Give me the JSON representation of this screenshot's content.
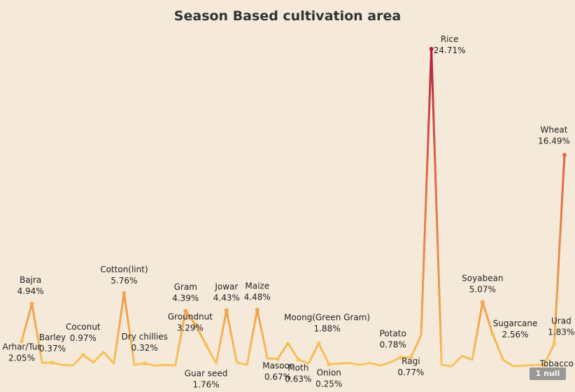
{
  "chart_data": {
    "type": "line",
    "title": "Season Based cultivation area",
    "xlabel": "",
    "ylabel": "",
    "ylim": [
      0,
      26
    ],
    "grid": false,
    "legend": "none",
    "color_scale": [
      "#f6c55e",
      "#f2a54e",
      "#e06a48",
      "#b11f3b"
    ],
    "points": [
      {
        "crop": "Arhar/Tur",
        "value": 2.05,
        "show_label": true,
        "label": "2.05%"
      },
      {
        "crop": "Bajra",
        "value": 4.94,
        "show_label": true,
        "label": "4.94%"
      },
      {
        "crop": "",
        "value": 0.35,
        "show_label": false
      },
      {
        "crop": "Barley",
        "value": 0.37,
        "show_label": true,
        "label": "0.37%"
      },
      {
        "crop": "",
        "value": 0.2,
        "show_label": false
      },
      {
        "crop": "",
        "value": 0.15,
        "show_label": false
      },
      {
        "crop": "Coconut",
        "value": 0.97,
        "show_label": true,
        "label": "0.97%"
      },
      {
        "crop": "",
        "value": 0.4,
        "show_label": false
      },
      {
        "crop": "",
        "value": 1.2,
        "show_label": false
      },
      {
        "crop": "",
        "value": 0.3,
        "show_label": false
      },
      {
        "crop": "Cotton(lint)",
        "value": 5.76,
        "show_label": true,
        "label": "5.76%"
      },
      {
        "crop": "",
        "value": 0.2,
        "show_label": false
      },
      {
        "crop": "Dry chillies",
        "value": 0.32,
        "show_label": true,
        "label": "0.32%"
      },
      {
        "crop": "",
        "value": 0.15,
        "show_label": false
      },
      {
        "crop": "",
        "value": 0.2,
        "show_label": false
      },
      {
        "crop": "",
        "value": 0.15,
        "show_label": false
      },
      {
        "crop": "Gram",
        "value": 4.39,
        "show_label": true,
        "label": "4.39%"
      },
      {
        "crop": "Groundnut",
        "value": 3.29,
        "show_label": true,
        "label": "3.29%"
      },
      {
        "crop": "Guar seed",
        "value": 1.76,
        "show_label": true,
        "label": "1.76%"
      },
      {
        "crop": "",
        "value": 0.3,
        "show_label": false
      },
      {
        "crop": "Jowar",
        "value": 4.43,
        "show_label": true,
        "label": "4.43%"
      },
      {
        "crop": "",
        "value": 0.4,
        "show_label": false
      },
      {
        "crop": "",
        "value": 0.2,
        "show_label": false
      },
      {
        "crop": "Maize",
        "value": 4.48,
        "show_label": true,
        "label": "4.48%"
      },
      {
        "crop": "",
        "value": 0.7,
        "show_label": false
      },
      {
        "crop": "Masoor",
        "value": 0.67,
        "show_label": true,
        "label": "0.67%"
      },
      {
        "crop": "",
        "value": 1.9,
        "show_label": false
      },
      {
        "crop": "Moth",
        "value": 0.63,
        "show_label": true,
        "label": "0.63%"
      },
      {
        "crop": "",
        "value": 0.3,
        "show_label": false
      },
      {
        "crop": "Moong(Green Gram)",
        "value": 1.88,
        "show_label": true,
        "label": "1.88%"
      },
      {
        "crop": "Onion",
        "value": 0.25,
        "show_label": true,
        "label": "0.25%"
      },
      {
        "crop": "",
        "value": 0.3,
        "show_label": false
      },
      {
        "crop": "",
        "value": 0.35,
        "show_label": false
      },
      {
        "crop": "",
        "value": 0.2,
        "show_label": false
      },
      {
        "crop": "",
        "value": 0.35,
        "show_label": false
      },
      {
        "crop": "",
        "value": 0.15,
        "show_label": false
      },
      {
        "crop": "",
        "value": 0.4,
        "show_label": false
      },
      {
        "crop": "Potato",
        "value": 0.78,
        "show_label": true,
        "label": "0.78%"
      },
      {
        "crop": "Ragi",
        "value": 0.77,
        "show_label": true,
        "label": "0.77%"
      },
      {
        "crop": "",
        "value": 2.5,
        "show_label": false
      },
      {
        "crop": "Rice",
        "value": 24.71,
        "show_label": true,
        "label": "24.71%"
      },
      {
        "crop": "",
        "value": 0.2,
        "show_label": false
      },
      {
        "crop": "",
        "value": 0.1,
        "show_label": false
      },
      {
        "crop": "",
        "value": 0.9,
        "show_label": false
      },
      {
        "crop": "",
        "value": 0.6,
        "show_label": false
      },
      {
        "crop": "Soyabean",
        "value": 5.07,
        "show_label": true,
        "label": "5.07%"
      },
      {
        "crop": "Sugarcane",
        "value": 2.56,
        "show_label": true,
        "label": "2.56%"
      },
      {
        "crop": "",
        "value": 0.6,
        "show_label": false
      },
      {
        "crop": "",
        "value": 0.1,
        "show_label": false
      },
      {
        "crop": "",
        "value": 0.15,
        "show_label": false
      },
      {
        "crop": "",
        "value": 0.2,
        "show_label": false
      },
      {
        "crop": "Tobacco",
        "value": 0.2,
        "show_label": true,
        "label": ""
      },
      {
        "crop": "Urad",
        "value": 1.83,
        "show_label": true,
        "label": "1.83%"
      },
      {
        "crop": "Wheat",
        "value": 16.49,
        "show_label": true,
        "label": "16.49%"
      }
    ]
  },
  "null_indicator": "1 null"
}
